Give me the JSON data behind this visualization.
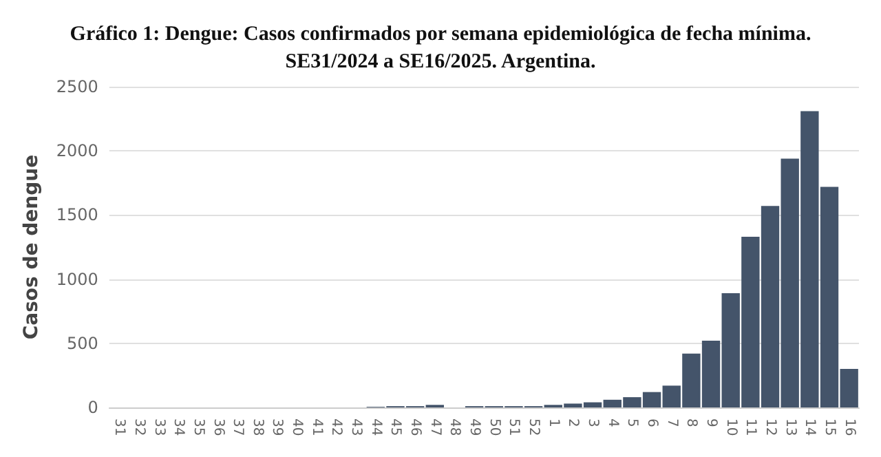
{
  "chart_data": {
    "type": "bar",
    "title": "Gráfico 1: Dengue: Casos confirmados por semana epidemiológica de fecha mínima.\nSE31/2024 a SE16/2025. Argentina.",
    "ylabel": "Casos de dengue",
    "categories": [
      "31",
      "32",
      "33",
      "34",
      "35",
      "36",
      "37",
      "38",
      "39",
      "40",
      "41",
      "42",
      "43",
      "44",
      "45",
      "46",
      "47",
      "48",
      "49",
      "50",
      "51",
      "52",
      "1",
      "2",
      "3",
      "4",
      "5",
      "6",
      "7",
      "8",
      "9",
      "10",
      "11",
      "12",
      "13",
      "14",
      "15",
      "16"
    ],
    "values": [
      0,
      0,
      0,
      0,
      0,
      0,
      0,
      0,
      0,
      0,
      0,
      0,
      0,
      5,
      10,
      10,
      20,
      0,
      10,
      10,
      10,
      10,
      20,
      30,
      40,
      60,
      80,
      120,
      170,
      420,
      520,
      890,
      1330,
      1570,
      1940,
      2310,
      1720,
      300
    ],
    "color": "#44546a",
    "ylim": [
      0,
      2500
    ],
    "yticks": [
      0,
      500,
      1000,
      1500,
      2000,
      2500
    ],
    "grid": "y"
  }
}
